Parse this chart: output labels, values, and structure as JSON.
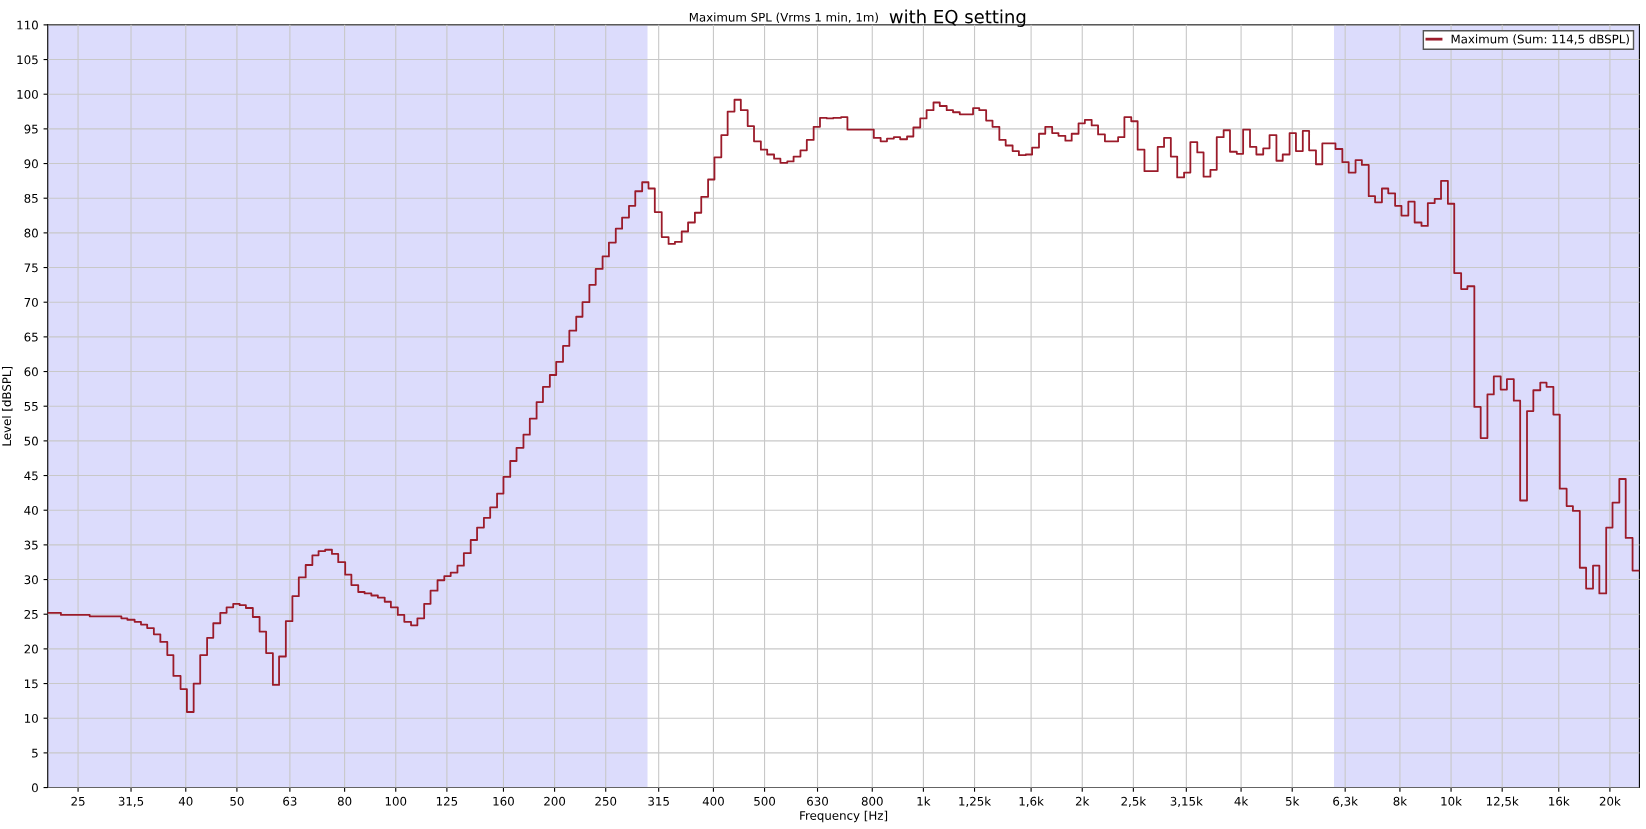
{
  "chart_data": {
    "type": "step",
    "title": "Maximum SPL (Vrms 1 min, 1m)",
    "subtitle": "with EQ setting",
    "xlabel": "Frequency [Hz]",
    "ylabel": "Level [dBSPL]",
    "log": "x",
    "grid": true,
    "legend": "top right",
    "line_style": "solid",
    "marker": "none",
    "xlim": [
      21.9,
      22750
    ],
    "ylim": [
      0,
      110
    ],
    "xticks": [
      25,
      {
        "value": 31.5,
        "label": "31,5"
      },
      40,
      50,
      63,
      80,
      100,
      125,
      160,
      200,
      250,
      315,
      400,
      500,
      630,
      800,
      {
        "value": 1000,
        "label": "1k"
      },
      {
        "value": 1250,
        "label": "1,25k"
      },
      {
        "value": 1600,
        "label": "1,6k"
      },
      {
        "value": 2000,
        "label": "2k"
      },
      {
        "value": 2500,
        "label": "2,5k"
      },
      {
        "value": 3150,
        "label": "3,15k"
      },
      {
        "value": 4000,
        "label": "4k"
      },
      {
        "value": 5000,
        "label": "5k"
      },
      {
        "value": 6300,
        "label": "6,3k"
      },
      {
        "value": 8000,
        "label": "8k"
      },
      {
        "value": 10000,
        "label": "10k"
      },
      {
        "value": 12500,
        "label": "12,5k"
      },
      {
        "value": 16000,
        "label": "16k"
      },
      {
        "value": 20000,
        "label": "20k"
      }
    ],
    "yticks": [
      0,
      5,
      10,
      15,
      20,
      25,
      30,
      35,
      40,
      45,
      50,
      55,
      60,
      65,
      70,
      75,
      80,
      85,
      90,
      95,
      100,
      105,
      110
    ],
    "bands": [
      {
        "axis": "x",
        "from": 21.9,
        "to": 300,
        "color": "#dcdcfc"
      },
      {
        "axis": "x",
        "from": 6000,
        "to": 22750,
        "color": "#dcdcfc"
      }
    ],
    "series": [
      {
        "name": "Maximum (Sum: 114,5 dBSPL)",
        "color": "#9b1b2a",
        "x": [
          21.9,
          23.2,
          26.3,
          30.2,
          31.0,
          32.0,
          32.9,
          33.8,
          34.8,
          35.8,
          36.9,
          37.9,
          39.1,
          40.2,
          41.4,
          42.6,
          43.9,
          45.1,
          46.5,
          47.8,
          49.2,
          50.6,
          52.0,
          53.6,
          55.2,
          56.8,
          58.5,
          60.1,
          61.9,
          63.7,
          65.5,
          67.5,
          69.5,
          71.4,
          73.5,
          75.7,
          77.8,
          80.2,
          82.4,
          84.9,
          87.3,
          89.9,
          92.5,
          95.3,
          97.9,
          100.9,
          103.8,
          106.9,
          109.9,
          113.2,
          116.4,
          120.0,
          123.6,
          127.1,
          130.9,
          134.6,
          138.7,
          142.6,
          146.9,
          151.0,
          155.6,
          160.0,
          164.8,
          169.4,
          174.6,
          179.5,
          184.9,
          190.1,
          195.9,
          201.4,
          207.5,
          213.3,
          219.8,
          225.9,
          232.8,
          239.3,
          246.6,
          253.5,
          261.2,
          268.5,
          276.7,
          284.4,
          293.1,
          301.3,
          309.7,
          319.2,
          328.9,
          338.1,
          348.3,
          358.1,
          368.9,
          379.3,
          390.8,
          401.8,
          414.0,
          425.6,
          438.5,
          450.8,
          464.5,
          477.5,
          492.0,
          505.8,
          521.2,
          535.8,
          552.1,
          567.5,
          584.8,
          601.2,
          619.4,
          636.8,
          656.1,
          674.5,
          698.2,
          717.8,
          805.4,
          829.8,
          853.1,
          879.0,
          903.6,
          931.1,
          957.2,
          986.3,
          1014,
          1045,
          1074,
          1107,
          1138,
          1172,
          1242,
          1276,
          1315,
          1352,
          1393,
          1432,
          1476,
          1517,
          1563,
          1607,
          1656,
          1702,
          1754,
          1803,
          1858,
          1910,
          1968,
          2023,
          2084,
          2143,
          2208,
          2339,
          2404,
          2477,
          2547,
          2624,
          2780,
          2858,
          2944,
          3027,
          3119,
          3206,
          3304,
          3396,
          3499,
          3597,
          3707,
          3811,
          3926,
          4036,
          4159,
          4276,
          4406,
          4529,
          4667,
          4797,
          4943,
          5082,
          5236,
          5383,
          5546,
          5702,
          6039,
          6223,
          6397,
          6592,
          6776,
          6982,
          7178,
          7396,
          7603,
          7834,
          8054,
          8299,
          8531,
          8790,
          9036,
          9311,
          9572,
          9863,
          10140,
          10450,
          10740,
          11070,
          11380,
          11720,
          12050,
          12420,
          12760,
          13150,
          13520,
          13930,
          14320,
          14760,
          15170,
          15630,
          16070,
          16560,
          17020,
          17540,
          18030,
          18580,
          19100,
          19680,
          20230,
          20840,
          21430,
          22080
        ],
        "values": [
          25.2,
          24.9,
          24.7,
          24.4,
          24.2,
          23.9,
          23.5,
          23.0,
          22.1,
          21.0,
          19.1,
          16.1,
          14.2,
          10.9,
          15.0,
          19.1,
          21.6,
          23.7,
          25.2,
          26.0,
          26.5,
          26.3,
          25.9,
          24.6,
          22.5,
          19.4,
          14.8,
          18.9,
          24.0,
          27.6,
          30.3,
          32.1,
          33.5,
          34.1,
          34.3,
          33.7,
          32.5,
          30.7,
          29.2,
          28.2,
          28.0,
          27.7,
          27.4,
          26.8,
          26.0,
          24.9,
          23.9,
          23.4,
          24.4,
          26.5,
          28.4,
          29.9,
          30.5,
          31.0,
          32.0,
          33.8,
          35.7,
          37.5,
          38.9,
          40.4,
          42.4,
          44.8,
          47.1,
          49.0,
          50.9,
          53.2,
          55.6,
          57.8,
          59.5,
          61.4,
          63.7,
          65.9,
          67.9,
          70.0,
          72.5,
          74.8,
          76.6,
          78.6,
          80.6,
          82.2,
          83.9,
          86.0,
          87.3,
          86.4,
          83.0,
          79.4,
          78.4,
          78.7,
          80.2,
          81.5,
          82.9,
          85.2,
          87.7,
          90.9,
          94.1,
          97.5,
          99.2,
          97.7,
          95.4,
          93.2,
          92.0,
          91.3,
          90.7,
          90.1,
          90.3,
          91.0,
          91.9,
          93.4,
          95.3,
          96.6,
          96.5,
          96.6,
          96.7,
          94.9,
          93.7,
          93.2,
          93.6,
          93.8,
          93.5,
          93.9,
          95.2,
          96.5,
          97.7,
          98.8,
          98.3,
          97.7,
          97.4,
          97.1,
          98.0,
          97.7,
          96.2,
          95.3,
          93.4,
          92.6,
          91.8,
          91.2,
          91.3,
          92.3,
          94.3,
          95.3,
          94.4,
          94.0,
          93.3,
          94.3,
          95.8,
          96.3,
          95.5,
          94.2,
          93.2,
          93.8,
          96.7,
          96.1,
          92.0,
          88.9,
          92.4,
          93.7,
          91.0,
          88.0,
          88.7,
          93.1,
          91.6,
          88.1,
          89.1,
          93.8,
          94.8,
          91.7,
          91.4,
          94.9,
          92.4,
          91.3,
          92.2,
          94.1,
          90.4,
          91.3,
          94.4,
          91.8,
          94.7,
          91.9,
          89.9,
          92.9,
          92.1,
          90.2,
          88.7,
          90.5,
          89.8,
          85.3,
          84.4,
          86.4,
          85.7,
          83.9,
          82.5,
          84.5,
          81.5,
          81.0,
          84.3,
          84.9,
          87.5,
          84.2,
          74.2,
          71.9,
          72.3,
          54.9,
          50.4,
          56.7,
          59.3,
          57.4,
          58.9,
          55.8,
          41.4,
          54.3,
          57.3,
          58.4,
          57.8,
          53.8,
          43.1,
          40.6,
          39.9,
          31.7,
          28.7,
          32.0,
          28.0,
          37.5,
          41.1,
          44.5,
          36.0,
          31.3
        ]
      }
    ]
  }
}
